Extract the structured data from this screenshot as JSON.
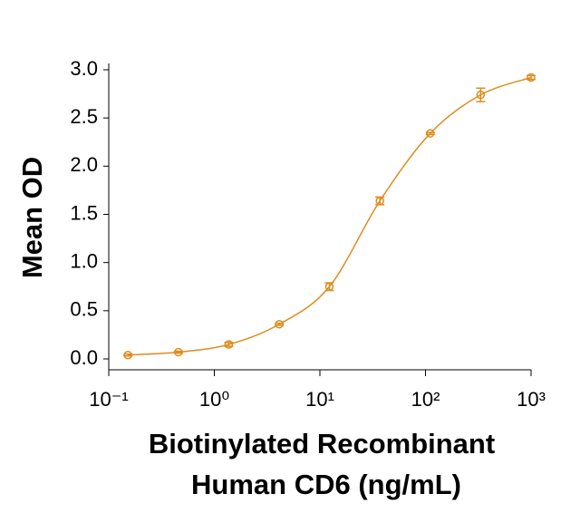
{
  "chart_data": {
    "type": "scatter",
    "ylabel": "Mean OD",
    "xlabel": [
      "Biotinylated Recombinant",
      "Human CD6 (ng/mL)"
    ],
    "xscale": "log",
    "series": [
      {
        "name": "Biotinylated Recombinant Human CD6",
        "color": "#e08c1c",
        "x": [
          0.152,
          0.457,
          1.37,
          4.12,
          12.3,
          37,
          111,
          333,
          1000
        ],
        "values": [
          0.04,
          0.07,
          0.15,
          0.36,
          0.75,
          1.64,
          2.34,
          2.74,
          2.92
        ],
        "errors": [
          0.01,
          0.01,
          0.02,
          0.01,
          0.04,
          0.04,
          0.01,
          0.07,
          0.02
        ]
      }
    ],
    "xlim": [
      0.1,
      1000
    ],
    "xticks": [
      {
        "value": 0.1,
        "label": "10⁻¹"
      },
      {
        "value": 1,
        "label": "10⁰"
      },
      {
        "value": 10,
        "label": "10¹"
      },
      {
        "value": 100,
        "label": "10²"
      },
      {
        "value": 1000,
        "label": "10³"
      }
    ],
    "ylim": [
      0,
      3
    ],
    "yticks": [
      {
        "value": 0,
        "label": "0.0"
      },
      0.5,
      {
        "value": 1,
        "label": "1.0"
      },
      1.5,
      {
        "value": 2,
        "label": "2.0"
      },
      2.5,
      {
        "value": 3,
        "label": "3.0"
      }
    ],
    "grid": false
  }
}
